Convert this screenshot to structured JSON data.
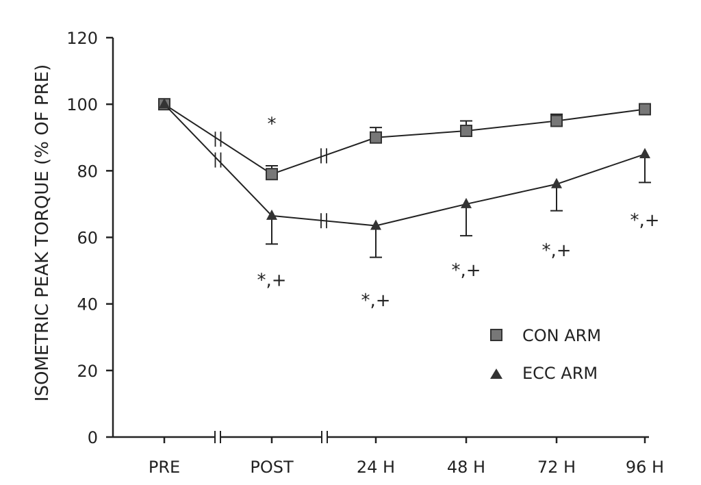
{
  "chart_data": {
    "type": "line",
    "title": "",
    "xlabel": "",
    "ylabel": "ISOMETRIC PEAK TORQUE (% OF PRE)",
    "categories": [
      "PRE",
      "POST",
      "24 H",
      "48 H",
      "72 H",
      "96 H"
    ],
    "yticks": [
      "0",
      "20",
      "40",
      "60",
      "80",
      "100",
      "120"
    ],
    "ylim": [
      0,
      120
    ],
    "grid": false,
    "legend_position": "lower-right",
    "axis_breaks": [
      "between PRE and POST",
      "between POST and 24 H"
    ],
    "series": [
      {
        "name": "CON ARM",
        "marker": "square",
        "values": [
          100,
          79,
          90,
          92,
          95,
          98.5
        ],
        "error_up": [
          0,
          2.5,
          3,
          3,
          2,
          1
        ]
      },
      {
        "name": "ECC ARM",
        "marker": "triangle",
        "values": [
          100,
          66.5,
          63.5,
          70,
          76,
          85
        ],
        "error_down": [
          0,
          8.5,
          9.5,
          9.5,
          8,
          8.5
        ]
      }
    ],
    "annotations": [
      {
        "text": "*",
        "x": "POST",
        "y": 94
      },
      {
        "text": "*,+",
        "x": "POST",
        "y": 47
      },
      {
        "text": "*,+",
        "x": "24 H",
        "y": 41
      },
      {
        "text": "*,+",
        "x": "48 H",
        "y": 50
      },
      {
        "text": "*,+",
        "x": "72 H",
        "y": 56
      },
      {
        "text": "*,+",
        "x": "96 H",
        "y": 65
      }
    ],
    "colors": {
      "axis": "#222222",
      "marker": "#333333",
      "con_fill": "#777777"
    }
  }
}
